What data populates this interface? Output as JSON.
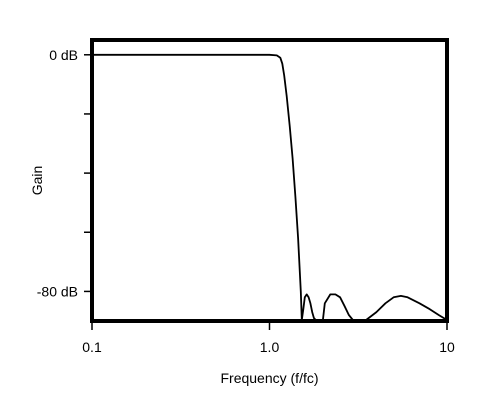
{
  "chart_data": {
    "type": "line",
    "title": "",
    "xlabel": "Frequency (f/fc)",
    "ylabel": "Gain",
    "x_scale": "log",
    "xlim": [
      0.1,
      10
    ],
    "ylim": [
      -90,
      5
    ],
    "x_ticks": [
      {
        "value": 0.1,
        "label": "0.1"
      },
      {
        "value": 1.0,
        "label": "1.0"
      },
      {
        "value": 10,
        "label": "10"
      }
    ],
    "y_ticks": [
      {
        "value": 0,
        "label": "0 dB"
      },
      {
        "value": -20,
        "label": ""
      },
      {
        "value": -40,
        "label": ""
      },
      {
        "value": -60,
        "label": ""
      },
      {
        "value": -80,
        "label": "-80 dB"
      }
    ],
    "grid": false,
    "legend": "none",
    "line_color": "#000000",
    "series": [
      {
        "x": [
          0.1,
          0.3,
          0.6,
          1.0,
          1.1,
          1.15,
          1.18,
          1.21,
          1.25,
          1.3,
          1.35,
          1.4,
          1.45,
          1.5,
          1.52,
          1.55,
          1.58,
          1.62,
          1.66,
          1.7,
          1.74,
          1.78,
          1.82,
          1.9,
          2.0,
          2.05,
          2.2,
          2.35,
          2.5,
          2.65,
          2.8,
          2.95,
          3.0,
          3.2,
          3.5,
          4.0,
          4.5,
          5.0,
          5.5,
          6.0,
          7.0,
          8.0,
          9.0,
          10.0
        ],
        "y": [
          0,
          0,
          0,
          0,
          -0.2,
          -1,
          -3,
          -7,
          -14,
          -24,
          -35,
          -48,
          -62,
          -80,
          -90,
          -86,
          -82,
          -81,
          -82,
          -84,
          -87,
          -89,
          -90,
          -90,
          -90,
          -84,
          -81,
          -81,
          -82,
          -85,
          -88,
          -90,
          -90,
          -90,
          -90,
          -87,
          -84,
          -82,
          -81.5,
          -82,
          -84,
          -86,
          -88,
          -90
        ]
      }
    ]
  }
}
